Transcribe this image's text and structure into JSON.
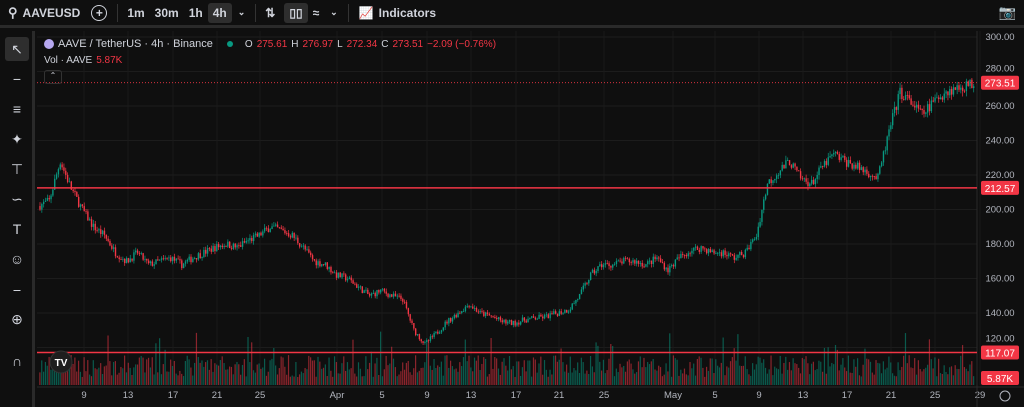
{
  "toolbar": {
    "symbol": "AAVEUSD",
    "intervals": [
      "1m",
      "30m",
      "1h",
      "4h"
    ],
    "active_interval": "4h",
    "indicators_label": "Indicators"
  },
  "legend": {
    "title": "AAVE / TetherUS · 4h · Binance",
    "o_label": "O",
    "o": "275.61",
    "h_label": "H",
    "h": "276.97",
    "l_label": "L",
    "l": "272.34",
    "c_label": "C",
    "c": "273.51",
    "change": "−2.09 (−0.76%)",
    "vol_label": "Vol · AAVE",
    "vol": "5.87K"
  },
  "left_tools": [
    "cursor-icon",
    "trend-line-icon",
    "fib-icon",
    "pattern-icon",
    "projection-icon",
    "brush-icon",
    "text-icon",
    "emoji-icon",
    "ruler-icon",
    "zoom-in-icon",
    "magnet-icon"
  ],
  "colors": {
    "up": "#089981",
    "down": "#f23645",
    "line": "#f23645",
    "bg": "#0f0f0f"
  },
  "chart_data": {
    "type": "candlestick",
    "price_axis": {
      "ticks": [
        "300.00",
        "280.00",
        "260.00",
        "240.00",
        "220.00",
        "200.00",
        "180.00",
        "160.00",
        "140.00",
        "120.00"
      ],
      "range": [
        113,
        304
      ]
    },
    "time_axis": {
      "ticks": [
        "9",
        "13",
        "17",
        "21",
        "25",
        "Apr",
        "5",
        "9",
        "13",
        "17",
        "21",
        "25",
        "May",
        "5",
        "9",
        "13",
        "17",
        "21",
        "25",
        "29"
      ]
    },
    "daily_close_estimates_start": "Mar 5",
    "daily_close": [
      205,
      228,
      212,
      200,
      190,
      185,
      175,
      170,
      175,
      168,
      170,
      172,
      168,
      172,
      175,
      178,
      180,
      178,
      182,
      185,
      190,
      188,
      185,
      178,
      170,
      168,
      162,
      160,
      155,
      150,
      153,
      150,
      148,
      130,
      122,
      128,
      135,
      140,
      145,
      140,
      138,
      135,
      134,
      136,
      137,
      138,
      140,
      142,
      150,
      162,
      168,
      168,
      170,
      170,
      168,
      172,
      165,
      172,
      176,
      178,
      175,
      175,
      172,
      175,
      185,
      215,
      222,
      228,
      218,
      215,
      225,
      232,
      228,
      225,
      222,
      218,
      245,
      268,
      262,
      255,
      262,
      268,
      270,
      272,
      273.51
    ],
    "last_price": "273.51",
    "horizontal_lines": [
      {
        "value": 212.57,
        "label": "212.57"
      },
      {
        "value": 117.07,
        "label": "117.07"
      }
    ],
    "volume_label": "5.87K"
  }
}
